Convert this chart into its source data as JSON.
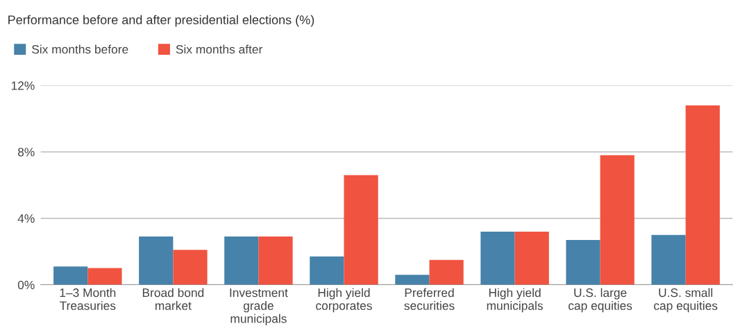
{
  "chart_data": {
    "type": "bar",
    "title": "Performance before and after presidential elections (%)",
    "categories": [
      "1–3 Month\nTreasuries",
      "Broad bond\nmarket",
      "Investment\ngrade\nmunicipals",
      "High yield\ncorporates",
      "Preferred\nsecurities",
      "High yield\nmunicipals",
      "U.S. large\ncap equities",
      "U.S. small\ncap equities"
    ],
    "series": [
      {
        "name": "Six months before",
        "color": "#4682a9",
        "values": [
          1.1,
          2.9,
          2.9,
          1.7,
          0.6,
          3.2,
          2.7,
          3.0
        ]
      },
      {
        "name": "Six months after",
        "color": "#f05340",
        "values": [
          1.0,
          2.1,
          2.9,
          6.6,
          1.5,
          3.2,
          7.8,
          10.8
        ]
      }
    ],
    "ylim": [
      0,
      12
    ],
    "yticks": [
      {
        "value": 0,
        "label": "0%"
      },
      {
        "value": 4,
        "label": "4%"
      },
      {
        "value": 8,
        "label": "8%"
      },
      {
        "value": 12,
        "label": "12%"
      }
    ],
    "grid": "y",
    "legend": "top left"
  }
}
